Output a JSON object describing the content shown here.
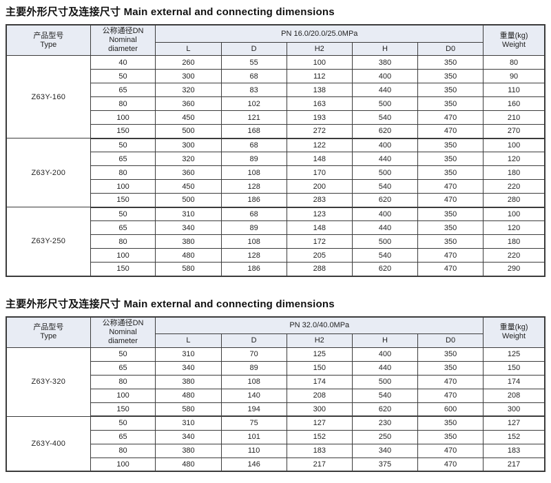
{
  "colors": {
    "header_bg": "#e8ecf4",
    "border": "#3a3a3a",
    "text": "#222222",
    "page_bg": "#ffffff"
  },
  "sections": [
    {
      "title": "主要外形尺寸及连接尺寸 Main external and connecting dimensions",
      "header": {
        "type_zh": "产品型号",
        "type_en": "Type",
        "dn_lines": [
          "公称通径DN",
          "Nominal",
          "diameter"
        ],
        "pn": "PN 16.0/20.0/25.0MPa",
        "dim_cols": [
          "L",
          "D",
          "H2",
          "H",
          "D0"
        ],
        "weight_zh": "重量(kg)",
        "weight_en": "Weight"
      },
      "groups": [
        {
          "type": "Z63Y-160",
          "rows": [
            [
              40,
              260,
              55,
              100,
              380,
              350,
              80
            ],
            [
              50,
              300,
              68,
              112,
              400,
              350,
              90
            ],
            [
              65,
              320,
              83,
              138,
              440,
              350,
              110
            ],
            [
              80,
              360,
              102,
              163,
              500,
              350,
              160
            ],
            [
              100,
              450,
              121,
              193,
              540,
              470,
              210
            ],
            [
              150,
              500,
              168,
              272,
              620,
              470,
              270
            ]
          ]
        },
        {
          "type": "Z63Y-200",
          "rows": [
            [
              50,
              300,
              68,
              122,
              400,
              350,
              100
            ],
            [
              65,
              320,
              89,
              148,
              440,
              350,
              120
            ],
            [
              80,
              360,
              108,
              170,
              500,
              350,
              180
            ],
            [
              100,
              450,
              128,
              200,
              540,
              470,
              220
            ],
            [
              150,
              500,
              186,
              283,
              620,
              470,
              280
            ]
          ]
        },
        {
          "type": "Z63Y-250",
          "rows": [
            [
              50,
              310,
              68,
              123,
              400,
              350,
              100
            ],
            [
              65,
              340,
              89,
              148,
              440,
              350,
              120
            ],
            [
              80,
              380,
              108,
              172,
              500,
              350,
              180
            ],
            [
              100,
              480,
              128,
              205,
              540,
              470,
              220
            ],
            [
              150,
              580,
              186,
              288,
              620,
              470,
              290
            ]
          ]
        }
      ]
    },
    {
      "title": "主要外形尺寸及连接尺寸 Main external and connecting dimensions",
      "header": {
        "type_zh": "产品型号",
        "type_en": "Type",
        "dn_lines": [
          "公称通径DN",
          "Nominal",
          "diameter"
        ],
        "pn": "PN 32.0/40.0MPa",
        "dim_cols": [
          "L",
          "D",
          "H2",
          "H",
          "D0"
        ],
        "weight_zh": "重量(kg)",
        "weight_en": "Weight"
      },
      "groups": [
        {
          "type": "Z63Y-320",
          "rows": [
            [
              50,
              310,
              70,
              125,
              400,
              350,
              125
            ],
            [
              65,
              340,
              89,
              150,
              440,
              350,
              150
            ],
            [
              80,
              380,
              108,
              174,
              500,
              470,
              174
            ],
            [
              100,
              480,
              140,
              208,
              540,
              470,
              208
            ],
            [
              150,
              580,
              194,
              300,
              620,
              600,
              300
            ]
          ]
        },
        {
          "type": "Z63Y-400",
          "rows": [
            [
              50,
              310,
              75,
              127,
              230,
              350,
              127
            ],
            [
              65,
              340,
              101,
              152,
              250,
              350,
              152
            ],
            [
              80,
              380,
              110,
              183,
              340,
              470,
              183
            ],
            [
              100,
              480,
              146,
              217,
              375,
              470,
              217
            ]
          ]
        }
      ]
    }
  ]
}
